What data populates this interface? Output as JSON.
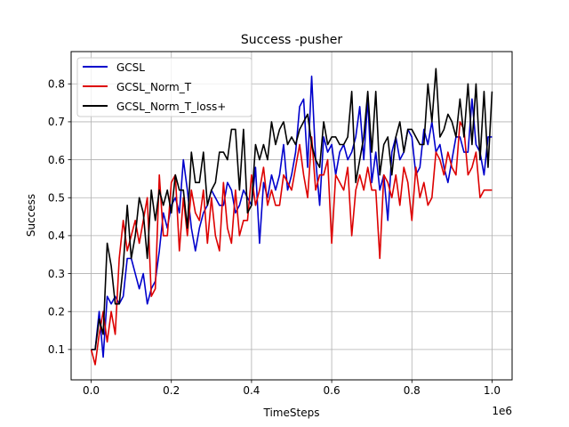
{
  "chart_data": {
    "type": "line",
    "title": "Success -pusher",
    "xlabel": "TimeSteps",
    "ylabel": "Success",
    "x_offset_label": "1e6",
    "xlim": [
      -0.05,
      1.05
    ],
    "ylim": [
      0.02,
      0.885
    ],
    "xticks": [
      0.0,
      0.2,
      0.4,
      0.6,
      0.8,
      1.0
    ],
    "xtick_labels": [
      "0.0",
      "0.2",
      "0.4",
      "0.6",
      "0.8",
      "1.0"
    ],
    "yticks": [
      0.1,
      0.2,
      0.3,
      0.4,
      0.5,
      0.6,
      0.7,
      0.8
    ],
    "ytick_labels": [
      "0.1",
      "0.2",
      "0.3",
      "0.4",
      "0.5",
      "0.6",
      "0.7",
      "0.8"
    ],
    "grid": true,
    "legend_position": "upper-left",
    "series": [
      {
        "name": "GCSL",
        "color": "#0000cc",
        "x": [
          0.0,
          0.01,
          0.02,
          0.03,
          0.04,
          0.05,
          0.06,
          0.07,
          0.08,
          0.09,
          0.1,
          0.11,
          0.12,
          0.13,
          0.14,
          0.15,
          0.16,
          0.17,
          0.18,
          0.19,
          0.2,
          0.21,
          0.22,
          0.23,
          0.24,
          0.25,
          0.26,
          0.27,
          0.28,
          0.29,
          0.3,
          0.31,
          0.32,
          0.33,
          0.34,
          0.35,
          0.36,
          0.37,
          0.38,
          0.39,
          0.4,
          0.41,
          0.42,
          0.43,
          0.44,
          0.45,
          0.46,
          0.47,
          0.48,
          0.49,
          0.5,
          0.51,
          0.52,
          0.53,
          0.54,
          0.55,
          0.56,
          0.57,
          0.58,
          0.59,
          0.6,
          0.61,
          0.62,
          0.63,
          0.64,
          0.65,
          0.66,
          0.67,
          0.68,
          0.69,
          0.7,
          0.71,
          0.72,
          0.73,
          0.74,
          0.75,
          0.76,
          0.77,
          0.78,
          0.79,
          0.8,
          0.81,
          0.82,
          0.83,
          0.84,
          0.85,
          0.86,
          0.87,
          0.88,
          0.89,
          0.9,
          0.91,
          0.92,
          0.93,
          0.94,
          0.95,
          0.96,
          0.97,
          0.98,
          0.99,
          1.0
        ],
        "values": [
          0.1,
          0.1,
          0.2,
          0.08,
          0.24,
          0.22,
          0.24,
          0.22,
          0.24,
          0.34,
          0.34,
          0.3,
          0.26,
          0.3,
          0.22,
          0.26,
          0.28,
          0.36,
          0.46,
          0.42,
          0.48,
          0.5,
          0.46,
          0.6,
          0.52,
          0.42,
          0.36,
          0.42,
          0.46,
          0.48,
          0.52,
          0.5,
          0.48,
          0.48,
          0.54,
          0.52,
          0.46,
          0.48,
          0.52,
          0.5,
          0.48,
          0.58,
          0.38,
          0.54,
          0.5,
          0.56,
          0.52,
          0.56,
          0.64,
          0.52,
          0.56,
          0.62,
          0.74,
          0.76,
          0.58,
          0.82,
          0.6,
          0.48,
          0.66,
          0.62,
          0.64,
          0.56,
          0.62,
          0.64,
          0.6,
          0.62,
          0.66,
          0.74,
          0.6,
          0.76,
          0.54,
          0.62,
          0.52,
          0.56,
          0.44,
          0.62,
          0.66,
          0.6,
          0.62,
          0.68,
          0.66,
          0.56,
          0.58,
          0.68,
          0.64,
          0.7,
          0.62,
          0.64,
          0.58,
          0.54,
          0.6,
          0.66,
          0.66,
          0.62,
          0.62,
          0.76,
          0.64,
          0.62,
          0.56,
          0.66,
          0.66
        ]
      },
      {
        "name": "GCSL_Norm_T",
        "color": "#dd0000",
        "x": [
          0.0,
          0.01,
          0.02,
          0.03,
          0.04,
          0.05,
          0.06,
          0.07,
          0.08,
          0.09,
          0.1,
          0.11,
          0.12,
          0.13,
          0.14,
          0.15,
          0.16,
          0.17,
          0.18,
          0.19,
          0.2,
          0.21,
          0.22,
          0.23,
          0.24,
          0.25,
          0.26,
          0.27,
          0.28,
          0.29,
          0.3,
          0.31,
          0.32,
          0.33,
          0.34,
          0.35,
          0.36,
          0.37,
          0.38,
          0.39,
          0.4,
          0.41,
          0.42,
          0.43,
          0.44,
          0.45,
          0.46,
          0.47,
          0.48,
          0.49,
          0.5,
          0.51,
          0.52,
          0.53,
          0.54,
          0.55,
          0.56,
          0.57,
          0.58,
          0.59,
          0.6,
          0.61,
          0.62,
          0.63,
          0.64,
          0.65,
          0.66,
          0.67,
          0.68,
          0.69,
          0.7,
          0.71,
          0.72,
          0.73,
          0.74,
          0.75,
          0.76,
          0.77,
          0.78,
          0.79,
          0.8,
          0.81,
          0.82,
          0.83,
          0.84,
          0.85,
          0.86,
          0.87,
          0.88,
          0.89,
          0.9,
          0.91,
          0.92,
          0.93,
          0.94,
          0.95,
          0.96,
          0.97,
          0.98,
          0.99,
          1.0
        ],
        "values": [
          0.1,
          0.06,
          0.14,
          0.2,
          0.12,
          0.2,
          0.14,
          0.34,
          0.44,
          0.36,
          0.4,
          0.44,
          0.38,
          0.44,
          0.5,
          0.24,
          0.26,
          0.56,
          0.4,
          0.4,
          0.54,
          0.56,
          0.36,
          0.5,
          0.4,
          0.52,
          0.46,
          0.44,
          0.52,
          0.38,
          0.5,
          0.4,
          0.36,
          0.54,
          0.42,
          0.38,
          0.52,
          0.4,
          0.44,
          0.44,
          0.56,
          0.48,
          0.52,
          0.58,
          0.48,
          0.52,
          0.48,
          0.48,
          0.56,
          0.54,
          0.52,
          0.58,
          0.64,
          0.56,
          0.5,
          0.66,
          0.52,
          0.56,
          0.56,
          0.6,
          0.38,
          0.56,
          0.54,
          0.52,
          0.58,
          0.4,
          0.52,
          0.56,
          0.52,
          0.58,
          0.52,
          0.52,
          0.34,
          0.56,
          0.54,
          0.5,
          0.56,
          0.48,
          0.58,
          0.54,
          0.44,
          0.58,
          0.5,
          0.54,
          0.48,
          0.5,
          0.62,
          0.6,
          0.56,
          0.62,
          0.58,
          0.56,
          0.7,
          0.68,
          0.56,
          0.58,
          0.62,
          0.5,
          0.52,
          0.52,
          0.52
        ]
      },
      {
        "name": "GCSL_Norm_T_loss+",
        "color": "#000000",
        "x": [
          0.0,
          0.01,
          0.02,
          0.03,
          0.04,
          0.05,
          0.06,
          0.07,
          0.08,
          0.09,
          0.1,
          0.11,
          0.12,
          0.13,
          0.14,
          0.15,
          0.16,
          0.17,
          0.18,
          0.19,
          0.2,
          0.21,
          0.22,
          0.23,
          0.24,
          0.25,
          0.26,
          0.27,
          0.28,
          0.29,
          0.3,
          0.31,
          0.32,
          0.33,
          0.34,
          0.35,
          0.36,
          0.37,
          0.38,
          0.39,
          0.4,
          0.41,
          0.42,
          0.43,
          0.44,
          0.45,
          0.46,
          0.47,
          0.48,
          0.49,
          0.5,
          0.51,
          0.52,
          0.53,
          0.54,
          0.55,
          0.56,
          0.57,
          0.58,
          0.59,
          0.6,
          0.61,
          0.62,
          0.63,
          0.64,
          0.65,
          0.66,
          0.67,
          0.68,
          0.69,
          0.7,
          0.71,
          0.72,
          0.73,
          0.74,
          0.75,
          0.76,
          0.77,
          0.78,
          0.79,
          0.8,
          0.81,
          0.82,
          0.83,
          0.84,
          0.85,
          0.86,
          0.87,
          0.88,
          0.89,
          0.9,
          0.91,
          0.92,
          0.93,
          0.94,
          0.95,
          0.96,
          0.97,
          0.98,
          0.99,
          1.0
        ],
        "values": [
          0.1,
          0.1,
          0.18,
          0.14,
          0.38,
          0.32,
          0.22,
          0.22,
          0.32,
          0.48,
          0.34,
          0.4,
          0.5,
          0.46,
          0.34,
          0.52,
          0.44,
          0.52,
          0.48,
          0.52,
          0.46,
          0.56,
          0.52,
          0.52,
          0.42,
          0.62,
          0.54,
          0.54,
          0.62,
          0.48,
          0.52,
          0.54,
          0.62,
          0.62,
          0.6,
          0.68,
          0.68,
          0.52,
          0.68,
          0.46,
          0.48,
          0.64,
          0.6,
          0.64,
          0.6,
          0.7,
          0.64,
          0.68,
          0.7,
          0.64,
          0.66,
          0.64,
          0.68,
          0.7,
          0.72,
          0.64,
          0.6,
          0.58,
          0.7,
          0.64,
          0.66,
          0.66,
          0.64,
          0.64,
          0.66,
          0.78,
          0.54,
          0.6,
          0.66,
          0.78,
          0.62,
          0.78,
          0.56,
          0.64,
          0.66,
          0.56,
          0.66,
          0.7,
          0.62,
          0.68,
          0.68,
          0.66,
          0.64,
          0.64,
          0.8,
          0.7,
          0.84,
          0.66,
          0.68,
          0.72,
          0.7,
          0.66,
          0.76,
          0.66,
          0.8,
          0.64,
          0.8,
          0.6,
          0.78,
          0.58,
          0.78
        ]
      }
    ]
  }
}
